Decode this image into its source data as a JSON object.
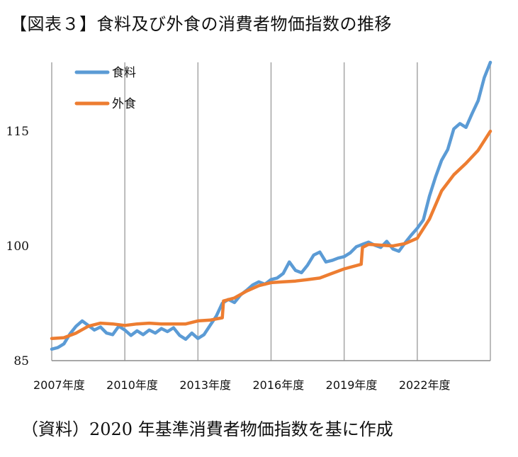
{
  "title": "【図表３】食料及び外食の消費者物価指数の推移",
  "source_note": "（資料）2020 年基準消費者物価指数を基に作成",
  "chart_data": {
    "type": "line",
    "ylim": [
      85,
      124
    ],
    "yticks": [
      "85",
      "100",
      "115"
    ],
    "ytick_values": [
      85,
      100,
      115
    ],
    "xticks": [
      "2007年度",
      "2010年度",
      "2013年度",
      "2016年度",
      "2019年度",
      "2022年度"
    ],
    "xtick_values": [
      2007,
      2010,
      2013,
      2016,
      2019,
      2022
    ],
    "xlim": [
      2007,
      2025.0
    ],
    "grid": "vertical",
    "legend_position": "top-left",
    "series": [
      {
        "name": "食料",
        "color": "#5b9bd5",
        "x": [
          2007.0,
          2007.25,
          2007.5,
          2007.75,
          2008.0,
          2008.25,
          2008.5,
          2008.75,
          2009.0,
          2009.25,
          2009.5,
          2009.75,
          2010.0,
          2010.25,
          2010.5,
          2010.75,
          2011.0,
          2011.25,
          2011.5,
          2011.75,
          2012.0,
          2012.25,
          2012.5,
          2012.75,
          2013.0,
          2013.25,
          2013.5,
          2013.75,
          2014.0,
          2014.25,
          2014.5,
          2014.75,
          2015.0,
          2015.25,
          2015.5,
          2015.75,
          2016.0,
          2016.25,
          2016.5,
          2016.75,
          2017.0,
          2017.25,
          2017.5,
          2017.75,
          2018.0,
          2018.25,
          2018.5,
          2018.75,
          2019.0,
          2019.25,
          2019.5,
          2019.75,
          2020.0,
          2020.25,
          2020.5,
          2020.75,
          2021.0,
          2021.25,
          2021.5,
          2021.75,
          2022.0,
          2022.25,
          2022.5,
          2022.75,
          2023.0,
          2023.25,
          2023.5,
          2023.75,
          2024.0,
          2024.25,
          2024.5,
          2024.75,
          2025.0
        ],
        "values": [
          86.5,
          86.7,
          87.2,
          88.5,
          89.5,
          90.2,
          89.6,
          89.0,
          89.4,
          88.6,
          88.4,
          89.5,
          89.0,
          88.3,
          88.9,
          88.4,
          89.0,
          88.6,
          89.2,
          88.8,
          89.3,
          88.3,
          87.8,
          88.6,
          87.9,
          88.4,
          89.6,
          90.8,
          92.5,
          93.0,
          92.6,
          93.6,
          94.2,
          94.9,
          95.3,
          95.0,
          95.6,
          95.8,
          96.4,
          97.9,
          96.8,
          96.5,
          97.5,
          98.8,
          99.2,
          97.9,
          98.1,
          98.4,
          98.6,
          99.1,
          99.9,
          100.2,
          100.5,
          100.1,
          99.8,
          100.6,
          99.6,
          99.3,
          100.4,
          101.4,
          102.3,
          103.4,
          106.5,
          109.0,
          111.2,
          112.6,
          115.3,
          116.0,
          115.5,
          117.3,
          119.0,
          122.0,
          124.0
        ]
      },
      {
        "name": "外食",
        "color": "#ed7d31",
        "x": [
          2007.0,
          2007.5,
          2008.0,
          2008.5,
          2009.0,
          2009.5,
          2010.0,
          2010.5,
          2011.0,
          2011.5,
          2012.0,
          2012.5,
          2013.0,
          2013.5,
          2014.0,
          2014.05,
          2014.5,
          2015.0,
          2015.5,
          2016.0,
          2016.5,
          2017.0,
          2017.5,
          2018.0,
          2018.5,
          2019.0,
          2019.7,
          2019.75,
          2020.0,
          2020.5,
          2021.0,
          2021.5,
          2022.0,
          2022.5,
          2023.0,
          2023.5,
          2024.0,
          2024.5,
          2025.0
        ],
        "values": [
          87.9,
          88.0,
          88.6,
          89.5,
          89.9,
          89.8,
          89.6,
          89.8,
          89.9,
          89.8,
          89.8,
          89.8,
          90.2,
          90.3,
          90.6,
          92.8,
          93.2,
          94.1,
          94.8,
          95.2,
          95.3,
          95.4,
          95.6,
          95.8,
          96.4,
          97.0,
          97.6,
          99.8,
          100.2,
          100.1,
          100.0,
          100.3,
          101.0,
          103.5,
          107.2,
          109.3,
          110.8,
          112.5,
          115.0
        ]
      }
    ]
  }
}
